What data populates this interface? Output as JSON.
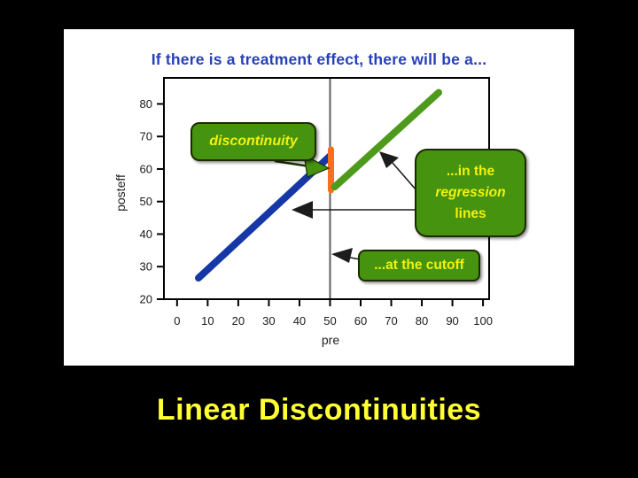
{
  "slide": {
    "title": "If there is a treatment effect, there will be a...",
    "caption": "Linear Discontinuities",
    "background": "#000000",
    "panel_background": "#ffffff",
    "title_color": "#2740b8",
    "caption_color": "#ffff33"
  },
  "chart_data": {
    "type": "line",
    "title": "If there is a treatment effect, there will be a...",
    "xlabel": "pre",
    "ylabel": "posteff",
    "xlim": [
      -4.3,
      102
    ],
    "ylim": [
      20,
      88
    ],
    "x_ticks": [
      0,
      10,
      20,
      30,
      40,
      50,
      60,
      70,
      80,
      90,
      100
    ],
    "y_ticks": [
      20,
      30,
      40,
      50,
      60,
      70,
      80
    ],
    "grid": false,
    "legend": false,
    "cutoff_x": 50,
    "series": [
      {
        "name": "control regression line (pre < cutoff)",
        "id": "control-regression",
        "color": "#1638a6",
        "width": 8,
        "x": [
          7,
          50
        ],
        "y": [
          26.5,
          64
        ]
      },
      {
        "name": "discontinuity jump at cutoff",
        "id": "discontinuity-jump",
        "color": "#fa6e1c",
        "width": 7,
        "x": [
          50.3,
          50.3
        ],
        "y": [
          53.5,
          66
        ]
      },
      {
        "name": "treatment regression line (pre > cutoff)",
        "id": "treatment-regression",
        "color": "#4e9a1c",
        "width": 8,
        "x": [
          51.5,
          85.5
        ],
        "y": [
          54.5,
          83.5
        ]
      }
    ],
    "annotations": [
      {
        "text": "discontinuity",
        "style": "italic",
        "points_to": "discontinuity jump at cutoff"
      },
      {
        "lines": [
          "...in the",
          "regression",
          "lines"
        ],
        "italic_line": 1,
        "points_to": "regression lines"
      },
      {
        "text": "...at the cutoff",
        "points_to": "cutoff line at pre = 50"
      }
    ],
    "colors": {
      "cutoff_line": "#5f5f5f",
      "axis": "#000000",
      "tick_text": "#1a1a1a",
      "callout_fill": "#45930f",
      "callout_border": "#1c2a04",
      "callout_text": "#f2f20c",
      "black_arrow": "#1c1c1c",
      "green_arrow": "#45930f"
    }
  }
}
